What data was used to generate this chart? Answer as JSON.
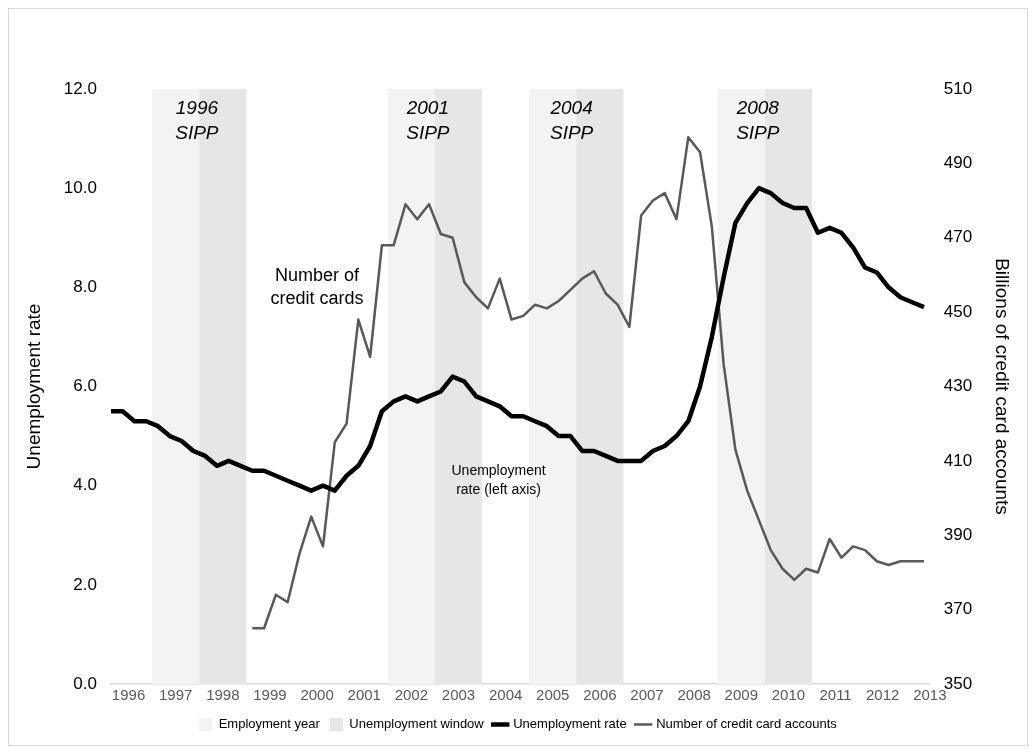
{
  "chart_data": {
    "type": "line",
    "x": [
      1996.125,
      1996.375,
      1996.625,
      1996.875,
      1997.125,
      1997.375,
      1997.625,
      1997.875,
      1998.125,
      1998.375,
      1998.625,
      1998.875,
      1999.125,
      1999.375,
      1999.625,
      1999.875,
      2000.125,
      2000.375,
      2000.625,
      2000.875,
      2001.125,
      2001.375,
      2001.625,
      2001.875,
      2002.125,
      2002.375,
      2002.625,
      2002.875,
      2003.125,
      2003.375,
      2003.625,
      2003.875,
      2004.125,
      2004.375,
      2004.625,
      2004.875,
      2005.125,
      2005.375,
      2005.625,
      2005.875,
      2006.125,
      2006.375,
      2006.625,
      2006.875,
      2007.125,
      2007.375,
      2007.625,
      2007.875,
      2008.125,
      2008.375,
      2008.625,
      2008.875,
      2009.125,
      2009.375,
      2009.625,
      2009.875,
      2010.125,
      2010.375,
      2010.625,
      2010.875,
      2011.125,
      2011.375,
      2011.625,
      2011.875,
      2012.125,
      2012.375,
      2012.625,
      2012.875,
      2013.125,
      2013.375
    ],
    "series": [
      {
        "name": "Unemployment rate",
        "color": "#000000",
        "values": [
          5.5,
          5.5,
          5.3,
          5.3,
          5.2,
          5.0,
          4.9,
          4.7,
          4.6,
          4.4,
          4.5,
          4.4,
          4.3,
          4.3,
          4.2,
          4.1,
          4.0,
          3.9,
          4.0,
          3.9,
          4.2,
          4.4,
          4.8,
          5.5,
          5.7,
          5.8,
          5.7,
          5.8,
          5.9,
          6.2,
          6.1,
          5.8,
          5.7,
          5.6,
          5.4,
          5.4,
          5.3,
          5.2,
          5.0,
          5.0,
          4.7,
          4.7,
          4.6,
          4.5,
          4.5,
          4.5,
          4.7,
          4.8,
          5.0,
          5.3,
          6.0,
          7.0,
          8.2,
          9.3,
          9.7,
          10.0,
          9.9,
          9.7,
          9.6,
          9.6,
          9.1,
          9.2,
          9.1,
          8.8,
          8.4,
          8.3,
          8.0,
          7.8,
          7.7,
          7.6
        ]
      },
      {
        "name": "Number of credit card accounts",
        "color": "#595959",
        "axis": "y2",
        "values": [
          null,
          null,
          null,
          null,
          null,
          null,
          null,
          null,
          null,
          null,
          null,
          null,
          365,
          365,
          374,
          372,
          385,
          395,
          387,
          415,
          420,
          448,
          438,
          468,
          468,
          479,
          475,
          479,
          471,
          470,
          458,
          454,
          451,
          459,
          448,
          449,
          452,
          451,
          453,
          456,
          459,
          461,
          455,
          452,
          446,
          476,
          480,
          482,
          475,
          497,
          493,
          473,
          436,
          413,
          402,
          394,
          386,
          381,
          378,
          381,
          380,
          389,
          384,
          387,
          386,
          383,
          382,
          383,
          383,
          383
        ]
      }
    ],
    "xlim": [
      1996.125,
      2013.5
    ],
    "xticks": [
      {
        "value": 1996.5,
        "label": "1996"
      },
      {
        "value": 1997.5,
        "label": "1997"
      },
      {
        "value": 1998.5,
        "label": "1998"
      },
      {
        "value": 1999.5,
        "label": "1999"
      },
      {
        "value": 2000.5,
        "label": "2000"
      },
      {
        "value": 2001.5,
        "label": "2001"
      },
      {
        "value": 2002.5,
        "label": "2002"
      },
      {
        "value": 2003.5,
        "label": "2003"
      },
      {
        "value": 2004.5,
        "label": "2004"
      },
      {
        "value": 2005.5,
        "label": "2005"
      },
      {
        "value": 2006.5,
        "label": "2006"
      },
      {
        "value": 2007.5,
        "label": "2007"
      },
      {
        "value": 2008.5,
        "label": "2008"
      },
      {
        "value": 2009.5,
        "label": "2009"
      },
      {
        "value": 2010.5,
        "label": "2010"
      },
      {
        "value": 2011.5,
        "label": "2011"
      },
      {
        "value": 2012.5,
        "label": "2012"
      },
      {
        "value": 2013.5,
        "label": "2013"
      }
    ],
    "ylim": [
      0,
      12
    ],
    "yticks": [
      {
        "value": 0,
        "label": "0.0"
      },
      {
        "value": 2,
        "label": "2.0"
      },
      {
        "value": 4,
        "label": "4.0"
      },
      {
        "value": 6,
        "label": "6.0"
      },
      {
        "value": 8,
        "label": "8.0"
      },
      {
        "value": 10,
        "label": "10.0"
      },
      {
        "value": 12,
        "label": "12.0"
      }
    ],
    "y2lim": [
      350,
      510
    ],
    "y2ticks": [
      350,
      370,
      390,
      410,
      430,
      450,
      470,
      490,
      510
    ],
    "ylabel": "Unemployment rate",
    "y2label": "Billions of credit card accounts",
    "bands": [
      {
        "axis": "x",
        "from": 1997,
        "to": 1998,
        "label": "Employment year",
        "color": "#f3f3f3"
      },
      {
        "axis": "x",
        "from": 1998,
        "to": 1999,
        "label": "Unemployment window",
        "color": "#e6e6e6"
      },
      {
        "axis": "x",
        "from": 2002,
        "to": 2003,
        "color": "#f3f3f3"
      },
      {
        "axis": "x",
        "from": 2003,
        "to": 2004,
        "color": "#e6e6e6"
      },
      {
        "axis": "x",
        "from": 2005,
        "to": 2006,
        "color": "#f3f3f3"
      },
      {
        "axis": "x",
        "from": 2006,
        "to": 2007,
        "color": "#e6e6e6"
      },
      {
        "axis": "x",
        "from": 2009,
        "to": 2010,
        "color": "#f3f3f3"
      },
      {
        "axis": "x",
        "from": 2010,
        "to": 2011,
        "color": "#e6e6e6"
      }
    ],
    "annotations": [
      "1996\nSIPP",
      "2001\nSIPP",
      "2004\nSIPP",
      "2008\nSIPP",
      "Number of\ncredit cards",
      "Unemployment\nrate (left axis)"
    ],
    "legend": "bottom",
    "grid": false,
    "marker": "none",
    "line_style": "solid"
  }
}
